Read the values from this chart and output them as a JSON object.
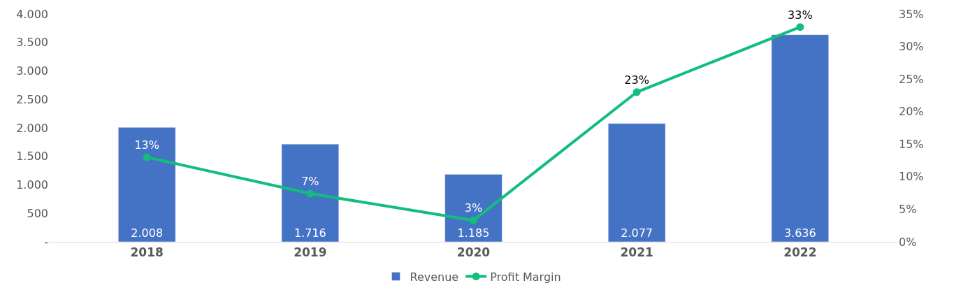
{
  "chart_data": {
    "type": "bar",
    "categories": [
      "2018",
      "2019",
      "2020",
      "2021",
      "2022"
    ],
    "series": [
      {
        "name": "Revenue",
        "color": "#4472c4",
        "values": [
          2008,
          1716,
          1185,
          2077,
          3636
        ],
        "value_labels": [
          "2.008",
          "1.716",
          "1.185",
          "2.077",
          "3.636"
        ]
      },
      {
        "name": "Profit Margin",
        "type": "line",
        "axis": "y2",
        "color": "#13be7d",
        "marker": "circle",
        "values": [
          13,
          7.4,
          3.3,
          23,
          33
        ],
        "value_labels": [
          "13%",
          "7%",
          "3%",
          "23%",
          "33%"
        ]
      }
    ],
    "ylim": [
      0,
      4000
    ],
    "yticks": [
      {
        "value": 0,
        "label": "-"
      },
      {
        "value": 500,
        "label": "500"
      },
      {
        "value": 1000,
        "label": "1.000"
      },
      {
        "value": 1500,
        "label": "1.500"
      },
      {
        "value": 2000,
        "label": "2.000"
      },
      {
        "value": 2500,
        "label": "2.500"
      },
      {
        "value": 3000,
        "label": "3.000"
      },
      {
        "value": 3500,
        "label": "3.500"
      },
      {
        "value": 4000,
        "label": "4.000"
      }
    ],
    "y2lim": [
      0,
      35
    ],
    "y2ticks": [
      {
        "value": 0,
        "label": "0%"
      },
      {
        "value": 5,
        "label": "5%"
      },
      {
        "value": 10,
        "label": "10%"
      },
      {
        "value": 15,
        "label": "15%"
      },
      {
        "value": 20,
        "label": "20%"
      },
      {
        "value": 25,
        "label": "25%"
      },
      {
        "value": 30,
        "label": "30%"
      },
      {
        "value": 35,
        "label": "35%"
      }
    ],
    "legend": "bottom"
  }
}
